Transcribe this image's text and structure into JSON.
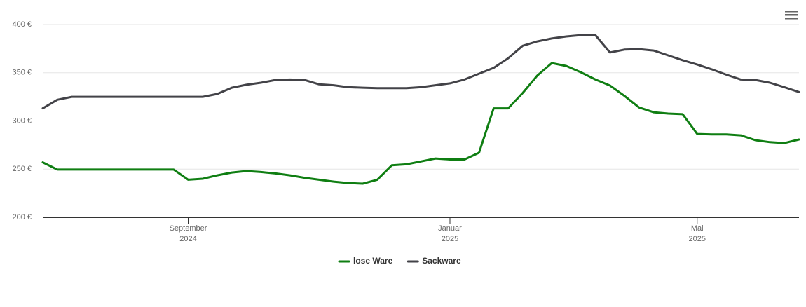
{
  "chart_data": {
    "type": "line",
    "categories": [
      null,
      null,
      null,
      null,
      null,
      null,
      null,
      null,
      null,
      null,
      "September 2024",
      null,
      null,
      null,
      null,
      null,
      null,
      null,
      null,
      null,
      null,
      null,
      null,
      null,
      null,
      null,
      null,
      null,
      "Januar 2025",
      null,
      null,
      null,
      null,
      null,
      null,
      null,
      null,
      null,
      null,
      null,
      null,
      null,
      null,
      null,
      null,
      "Mai 2025",
      null,
      null,
      null,
      null,
      null,
      null,
      null
    ],
    "series": [
      {
        "name": "lose Ware",
        "color": "#0f7e12",
        "values": [
          257,
          249.5,
          249.5,
          249.5,
          249.5,
          249.5,
          249.5,
          249.5,
          249.5,
          249.5,
          239,
          240,
          243.6,
          246.5,
          248,
          247,
          245.5,
          243.6,
          241,
          239,
          237,
          235.6,
          234.9,
          239,
          254,
          255,
          258,
          261,
          260,
          260,
          267,
          313,
          313,
          329,
          347,
          360,
          357,
          350.5,
          343,
          336.7,
          326,
          314,
          309,
          307.6,
          307,
          286.5,
          286,
          286,
          285,
          280,
          278,
          277,
          280.7
        ]
      },
      {
        "name": "Sackware",
        "color": "#434348",
        "values": [
          313,
          322,
          325,
          325,
          325,
          325,
          325,
          325,
          325,
          325,
          325,
          325,
          328,
          334.5,
          337.5,
          339.6,
          342.5,
          343,
          342.5,
          338,
          337,
          335,
          334.5,
          334,
          334,
          334,
          335,
          337,
          339,
          343,
          349,
          355,
          365,
          378,
          382.5,
          385.5,
          387.6,
          389,
          389,
          371,
          374,
          374.5,
          373,
          368,
          363,
          358.5,
          353.5,
          348,
          343,
          342.5,
          339.6,
          335,
          330
        ]
      }
    ],
    "ylim": [
      200,
      400
    ],
    "yticks": [
      {
        "value": 200,
        "label": "200 €"
      },
      {
        "value": 250,
        "label": "250 €"
      },
      {
        "value": 300,
        "label": "300 €"
      },
      {
        "value": 350,
        "label": "350 €"
      },
      {
        "value": 400,
        "label": "400 €"
      }
    ],
    "grid": true
  }
}
